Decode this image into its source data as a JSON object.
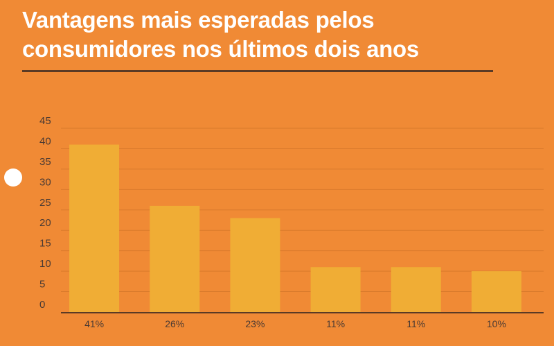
{
  "title": "Vantagens mais esperadas pelos consumidores nos últimos dois anos",
  "colors": {
    "background": "#f08a35",
    "bar": "#f0ad35",
    "grid": "#d97a2c",
    "axis": "#5a3a25",
    "text": "#4a3a33"
  },
  "chart_data": {
    "type": "bar",
    "title": "Vantagens mais esperadas pelos consumidores nos últimos dois anos",
    "categories": [
      "41%",
      "26%",
      "23%",
      "11%",
      "11%",
      "10%"
    ],
    "values": [
      41,
      26,
      23,
      11,
      11,
      10
    ],
    "yticks": [
      "0",
      "5",
      "10",
      "15",
      "20",
      "25",
      "30",
      "35",
      "40",
      "45"
    ],
    "ylim": [
      0,
      45
    ],
    "grid": true,
    "legend": "none"
  }
}
